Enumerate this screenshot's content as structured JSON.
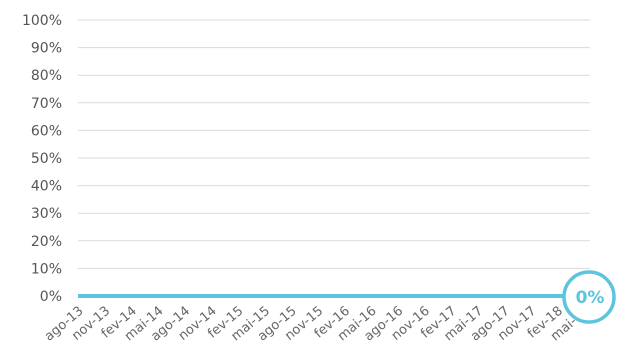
{
  "chart_data": {
    "type": "line",
    "categories": [
      "ago-13",
      "nov-13",
      "fev-14",
      "mai-14",
      "ago-14",
      "nov-14",
      "fev-15",
      "mai-15",
      "ago-15",
      "nov-15",
      "fev-16",
      "mai-16",
      "ago-16",
      "nov-16",
      "fev-17",
      "mai-17",
      "ago-17",
      "nov-17",
      "fev-18",
      "mai-18"
    ],
    "series": [
      {
        "values": [
          0,
          0,
          0,
          0,
          0,
          0,
          0,
          0,
          0,
          0,
          0,
          0,
          0,
          0,
          0,
          0,
          0,
          0,
          0,
          0
        ]
      }
    ],
    "y_ticks": [
      "0%",
      "10%",
      "20%",
      "30%",
      "40%",
      "50%",
      "60%",
      "70%",
      "80%",
      "90%",
      "100%"
    ],
    "ylim": [
      0,
      100
    ],
    "grid": true,
    "end_label": "0%",
    "colors": {
      "series": "#5bc4de",
      "grid": "#d9d9d9"
    }
  }
}
